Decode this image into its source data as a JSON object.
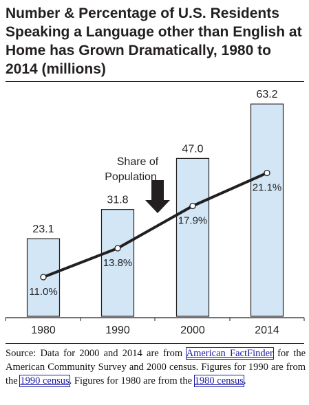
{
  "title": "Number & Percentage of U.S. Residents Speaking a Language other than English at Home has Grown Dramatically, 1980 to 2014 (millions)",
  "chart_data": {
    "type": "bar",
    "categories": [
      "1980",
      "1990",
      "2000",
      "2014"
    ],
    "series": [
      {
        "values": [
          23.1,
          31.8,
          47.0,
          63.2
        ],
        "value_labels": [
          "23.1",
          "31.8",
          "47.0",
          "63.2"
        ]
      },
      {
        "type": "line",
        "values": [
          11.0,
          13.8,
          17.9,
          21.1
        ],
        "value_labels": [
          "11.0%",
          "13.8%",
          "17.9%",
          "21.1%"
        ]
      }
    ],
    "ylim": [
      0,
      70
    ],
    "line_ylim": [
      7.2,
      30
    ],
    "annotation": "Share of Population",
    "grid": false,
    "bar_color": "#d2e6f6",
    "bar_edge_color": "#231f20",
    "line_color": "#231f20"
  },
  "source": {
    "part1": "Source: Data for 2000 and 2014 are from ",
    "link1": "American FactFinder",
    "part2": " for the American Community Survey and 2000 census. Figures for 1990 are from the ",
    "link2": "1990 census",
    "part3": ". Figures for 1980 are from the ",
    "link3": "1980 census",
    "part4": "."
  }
}
